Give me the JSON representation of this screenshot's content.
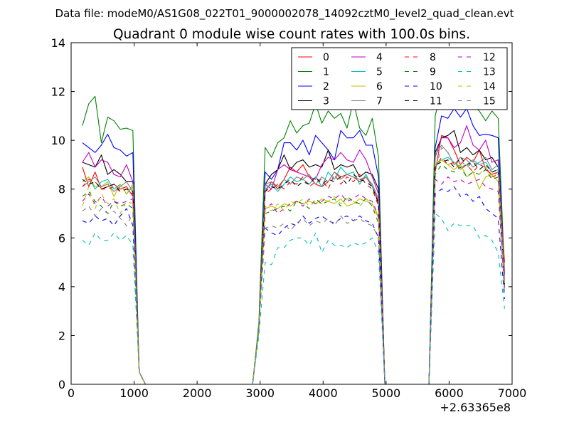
{
  "chart_data": {
    "type": "line",
    "suptitle": "Data file: modeM0/AS1G08_022T01_9000002078_14092cztM0_level2_quad_clean.evt",
    "title": "Quadrant 0 module wise count rates with 100.0s bins.",
    "xlabel": "",
    "ylabel": "",
    "xlim": [
      0,
      7000
    ],
    "ylim": [
      0,
      14
    ],
    "x_offset_label": "+2.63365e8",
    "xticks": [
      "0",
      "1000",
      "2000",
      "3000",
      "4000",
      "5000",
      "6000",
      "7000"
    ],
    "yticks": [
      "0",
      "2",
      "4",
      "6",
      "8",
      "10",
      "12",
      "14"
    ],
    "grid": false,
    "legend_position": "top-right",
    "legend_columns": 4,
    "x": [
      180,
      280,
      380,
      480,
      580,
      680,
      780,
      880,
      980,
      1080,
      1180,
      2880,
      2980,
      3080,
      3180,
      3280,
      3380,
      3480,
      3580,
      3680,
      3780,
      3880,
      3980,
      4080,
      4180,
      4280,
      4380,
      4480,
      4580,
      4680,
      4780,
      4880,
      4980,
      5680,
      5780,
      5880,
      5980,
      6080,
      6180,
      6280,
      6380,
      6480,
      6580,
      6680,
      6780,
      6880
    ],
    "series": [
      {
        "name": "0",
        "color": "#ff0000",
        "dashed": false,
        "values": [
          8.9,
          8.1,
          8.7,
          8.0,
          8.1,
          8.2,
          8.0,
          8.1,
          7.7,
          0.5,
          0,
          0,
          2.3,
          7.9,
          8.3,
          8.0,
          8.4,
          8.9,
          8.7,
          9.0,
          8.5,
          8.2,
          8.1,
          8.3,
          8.7,
          8.5,
          8.6,
          8.5,
          8.3,
          8.5,
          8.1,
          7.5,
          0,
          0,
          8.7,
          10.2,
          10.1,
          9.6,
          9.0,
          9.3,
          9.1,
          9.6,
          8.8,
          8.6,
          8.7,
          5.0
        ]
      },
      {
        "name": "1",
        "color": "#008000",
        "dashed": false,
        "values": [
          10.6,
          11.5,
          11.8,
          9.9,
          10.95,
          10.8,
          10.45,
          10.5,
          10.4,
          0.5,
          0,
          0,
          2.5,
          9.7,
          9.3,
          9.9,
          10.1,
          10.8,
          10.3,
          10.6,
          10.7,
          11.5,
          10.7,
          11.2,
          10.9,
          11.1,
          10.5,
          11.6,
          10.5,
          10.2,
          10.9,
          9.3,
          0,
          0,
          11.0,
          12.1,
          11.7,
          11.7,
          11.65,
          12.8,
          11.4,
          11.2,
          10.8,
          11.2,
          10.9,
          4.5
        ]
      },
      {
        "name": "2",
        "color": "#0000ff",
        "dashed": false,
        "values": [
          9.9,
          9.7,
          9.5,
          9.8,
          10.25,
          9.7,
          9.6,
          9.35,
          9.5,
          0.5,
          0,
          0,
          2.2,
          8.7,
          8.4,
          8.8,
          9.9,
          9.9,
          9.6,
          10.0,
          9.4,
          10.2,
          9.9,
          9.6,
          9.2,
          10.4,
          10.1,
          10.1,
          10.4,
          9.8,
          9.8,
          8.5,
          0,
          0,
          9.7,
          11.0,
          10.9,
          11.3,
          10.95,
          11.3,
          10.6,
          10.2,
          10.25,
          10.2,
          10.1,
          4.0
        ]
      },
      {
        "name": "3",
        "color": "#000000",
        "dashed": false,
        "values": [
          9.1,
          9.0,
          8.9,
          9.4,
          8.6,
          8.8,
          8.6,
          8.3,
          8.3,
          0.5,
          0,
          0,
          2.3,
          8.2,
          8.6,
          8.8,
          9.4,
          8.8,
          9.1,
          9.2,
          8.9,
          9.0,
          8.9,
          9.6,
          8.8,
          9.0,
          8.9,
          9.0,
          8.5,
          8.7,
          8.6,
          8.0,
          0,
          0,
          9.5,
          10.1,
          10.2,
          10.4,
          9.5,
          9.7,
          9.4,
          9.6,
          9.2,
          9.3,
          8.9,
          4.0
        ]
      },
      {
        "name": "4",
        "color": "#bf00bf",
        "dashed": false,
        "values": [
          9.1,
          9.5,
          8.9,
          9.2,
          9.1,
          8.6,
          8.5,
          9.0,
          8.3,
          0.5,
          0,
          0,
          2.3,
          8.2,
          8.0,
          8.8,
          9.0,
          8.8,
          8.7,
          8.6,
          8.5,
          8.4,
          9.0,
          9.3,
          9.2,
          9.5,
          9.2,
          9.1,
          9.6,
          9.2,
          8.5,
          7.8,
          0,
          0,
          9.3,
          10.1,
          10.1,
          9.7,
          9.9,
          10.6,
          9.8,
          9.6,
          10.0,
          9.1,
          9.2,
          4.5
        ]
      },
      {
        "name": "5",
        "color": "#00bfbf",
        "dashed": false,
        "values": [
          8.3,
          8.5,
          8.0,
          8.3,
          8.4,
          8.0,
          8.2,
          7.8,
          8.1,
          0.5,
          0,
          0,
          2.3,
          8.0,
          8.2,
          7.9,
          8.2,
          8.5,
          8.3,
          8.4,
          8.2,
          8.5,
          8.1,
          8.7,
          8.4,
          8.9,
          8.6,
          8.7,
          8.2,
          8.6,
          8.1,
          7.4,
          0,
          0,
          9.0,
          9.2,
          9.3,
          9.1,
          8.9,
          9.0,
          9.2,
          9.0,
          9.1,
          8.7,
          8.8,
          4.0
        ]
      },
      {
        "name": "6",
        "color": "#bfbf00",
        "dashed": false,
        "values": [
          8.3,
          8.5,
          8.1,
          8.1,
          8.3,
          7.7,
          8.2,
          7.8,
          8.2,
          0.5,
          0,
          0,
          2.3,
          7.2,
          7.3,
          7.2,
          7.4,
          7.3,
          7.5,
          7.4,
          7.5,
          7.4,
          7.6,
          7.5,
          7.4,
          7.6,
          7.3,
          7.4,
          7.6,
          7.5,
          7.4,
          6.8,
          0,
          0,
          8.9,
          9.2,
          9.0,
          8.8,
          9.0,
          8.5,
          8.7,
          8.0,
          8.5,
          8.6,
          8.3,
          3.8
        ]
      },
      {
        "name": "7",
        "color": "#808080",
        "dashed": false,
        "values": [
          8.1,
          8.3,
          8.5,
          8.1,
          8.2,
          7.9,
          8.1,
          8.3,
          7.9,
          0.5,
          0,
          0,
          2.3,
          8.2,
          8.3,
          8.1,
          8.4,
          8.2,
          8.5,
          8.4,
          8.6,
          8.2,
          8.5,
          8.3,
          8.7,
          8.4,
          8.6,
          8.5,
          8.4,
          8.5,
          8.2,
          7.6,
          0,
          0,
          9.4,
          9.8,
          9.5,
          9.0,
          9.3,
          9.2,
          8.9,
          9.1,
          9.3,
          8.8,
          9.0,
          4.2
        ]
      },
      {
        "name": "8",
        "color": "#ff0000",
        "dashed": true,
        "values": [
          8.1,
          8.4,
          8.3,
          8.0,
          8.0,
          8.1,
          7.9,
          8.0,
          7.8,
          0.5,
          0,
          0,
          2.3,
          7.8,
          8.0,
          8.2,
          8.0,
          8.3,
          8.2,
          8.5,
          8.1,
          8.3,
          8.4,
          8.0,
          8.6,
          8.2,
          8.5,
          8.3,
          8.6,
          8.2,
          8.0,
          7.3,
          0,
          0,
          8.9,
          9.3,
          9.0,
          9.1,
          8.8,
          9.0,
          8.7,
          9.0,
          8.9,
          8.5,
          8.6,
          4.0
        ]
      },
      {
        "name": "9",
        "color": "#008000",
        "dashed": true,
        "values": [
          7.7,
          7.9,
          7.5,
          7.3,
          7.0,
          7.5,
          7.3,
          7.4,
          7.2,
          0.5,
          0,
          0,
          2.3,
          7.0,
          7.1,
          7.2,
          7.3,
          7.1,
          7.5,
          7.4,
          7.2,
          7.6,
          7.4,
          7.5,
          7.6,
          7.3,
          7.7,
          7.5,
          7.4,
          7.6,
          7.3,
          6.6,
          0,
          0,
          8.6,
          9.0,
          8.8,
          8.7,
          8.9,
          8.5,
          8.7,
          8.6,
          8.8,
          8.4,
          8.5,
          4.0
        ]
      },
      {
        "name": "10",
        "color": "#0000ff",
        "dashed": true,
        "values": [
          6.7,
          6.6,
          6.9,
          6.7,
          6.8,
          6.5,
          6.9,
          7.2,
          6.5,
          0.5,
          0,
          0,
          2.3,
          6.4,
          6.2,
          6.1,
          6.4,
          6.6,
          6.5,
          6.9,
          6.6,
          6.8,
          6.9,
          6.7,
          6.6,
          6.8,
          6.9,
          6.7,
          6.9,
          6.7,
          6.6,
          6.0,
          0,
          0,
          7.8,
          8.0,
          7.9,
          8.1,
          7.7,
          7.8,
          7.5,
          7.7,
          7.2,
          7.0,
          6.8,
          3.5
        ]
      },
      {
        "name": "11",
        "color": "#000000",
        "dashed": true,
        "values": [
          8.4,
          8.2,
          8.3,
          8.0,
          8.1,
          8.2,
          7.9,
          8.0,
          7.9,
          0.5,
          0,
          0,
          2.3,
          7.9,
          8.1,
          8.0,
          8.2,
          8.4,
          8.1,
          8.3,
          8.2,
          8.5,
          8.2,
          8.4,
          8.3,
          8.5,
          8.2,
          8.6,
          8.4,
          8.3,
          8.1,
          7.4,
          0,
          0,
          9.0,
          9.1,
          9.2,
          8.9,
          9.3,
          9.0,
          9.1,
          8.8,
          9.0,
          8.7,
          8.8,
          4.0
        ]
      },
      {
        "name": "12",
        "color": "#bf00bf",
        "dashed": true,
        "values": [
          7.5,
          7.8,
          7.4,
          7.7,
          7.3,
          7.5,
          7.4,
          7.5,
          7.6,
          0.5,
          0,
          0,
          2.3,
          7.2,
          7.4,
          7.0,
          7.2,
          7.4,
          7.5,
          7.3,
          7.6,
          7.4,
          7.5,
          7.7,
          7.6,
          7.8,
          7.5,
          7.6,
          7.8,
          7.6,
          7.5,
          6.9,
          0,
          0,
          8.4,
          8.2,
          8.5,
          8.3,
          8.4,
          8.2,
          8.3,
          8.4,
          8.1,
          8.0,
          7.9,
          3.8
        ]
      },
      {
        "name": "13",
        "color": "#00bfbf",
        "dashed": true,
        "values": [
          5.9,
          5.7,
          6.2,
          5.9,
          5.9,
          6.2,
          5.9,
          6.1,
          5.7,
          0.5,
          0,
          0,
          2.0,
          5.0,
          4.9,
          5.6,
          5.6,
          5.9,
          6.0,
          6.0,
          5.7,
          6.2,
          5.4,
          5.9,
          5.7,
          5.7,
          5.6,
          5.8,
          5.7,
          5.8,
          6.0,
          5.4,
          0,
          0,
          7.0,
          6.8,
          6.3,
          6.6,
          6.5,
          6.5,
          6.5,
          6.0,
          6.1,
          5.9,
          5.4,
          3.1
        ]
      },
      {
        "name": "14",
        "color": "#bfbf00",
        "dashed": true,
        "values": [
          7.3,
          8.1,
          7.2,
          7.8,
          7.4,
          7.6,
          7.0,
          7.5,
          7.4,
          0.5,
          0,
          0,
          2.3,
          7.3,
          7.1,
          7.4,
          7.1,
          7.5,
          7.4,
          7.6,
          7.3,
          7.5,
          7.4,
          7.5,
          7.7,
          7.4,
          7.6,
          7.5,
          7.3,
          7.6,
          7.4,
          6.9,
          0,
          0,
          9.1,
          9.2,
          9.0,
          9.1,
          8.8,
          9.0,
          8.7,
          8.6,
          8.9,
          8.5,
          8.7,
          4.0
        ]
      },
      {
        "name": "15",
        "color": "#808080",
        "dashed": true,
        "values": [
          7.1,
          7.3,
          6.9,
          7.2,
          7.0,
          7.1,
          6.8,
          6.5,
          7.0,
          0.5,
          0,
          0,
          2.3,
          6.4,
          6.5,
          6.4,
          6.6,
          6.3,
          6.6,
          6.8,
          6.5,
          6.7,
          6.6,
          6.8,
          6.5,
          6.9,
          6.6,
          6.7,
          6.8,
          6.6,
          6.5,
          6.0,
          0,
          0,
          8.8,
          9.7,
          9.5,
          9.0,
          9.2,
          8.9,
          9.1,
          9.0,
          8.9,
          8.7,
          8.6,
          4.0
        ]
      }
    ]
  }
}
